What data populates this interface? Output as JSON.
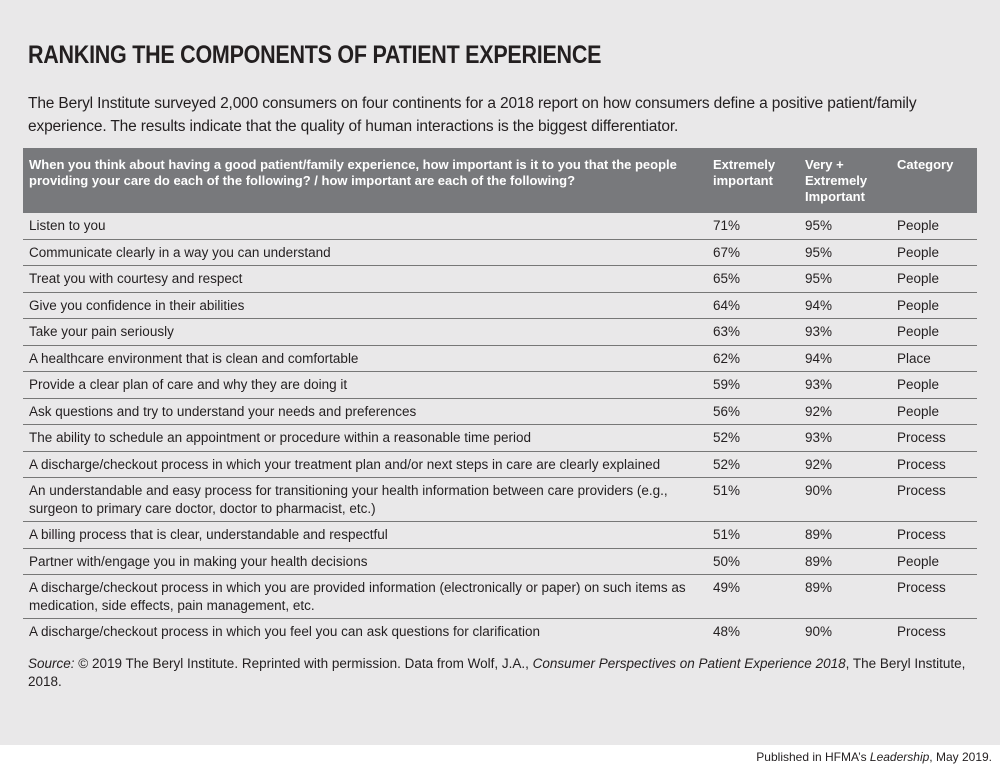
{
  "title": "RANKING THE COMPONENTS OF PATIENT EXPERIENCE",
  "intro": "The Beryl Institute surveyed 2,000 consumers on four continents for a 2018 report on how consumers define a positive patient/family experience. The results indicate that the quality of human interactions is the biggest differentiator.",
  "table": {
    "headers": [
      "When you think about having a good patient/family experience, how important is it to you that the people providing your care do each of the following? / how important are each of the following?",
      "Extremely important",
      "Very + Extremely Important",
      "Category"
    ],
    "rows": [
      [
        "Listen to you",
        "71%",
        "95%",
        "People"
      ],
      [
        "Communicate clearly in a way you can understand",
        "67%",
        "95%",
        "People"
      ],
      [
        "Treat you with courtesy and respect",
        "65%",
        "95%",
        "People"
      ],
      [
        "Give you confidence in their abilities",
        "64%",
        "94%",
        "People"
      ],
      [
        "Take your pain seriously",
        "63%",
        "93%",
        "People"
      ],
      [
        "A healthcare environment that is clean and comfortable",
        "62%",
        "94%",
        "Place"
      ],
      [
        "Provide a clear plan of care and why they are doing it",
        "59%",
        "93%",
        "People"
      ],
      [
        "Ask questions and try to understand your needs and preferences",
        "56%",
        "92%",
        "People"
      ],
      [
        "The ability to schedule an appointment or procedure within a reasonable time period",
        "52%",
        "93%",
        "Process"
      ],
      [
        "A discharge/checkout process in which your treatment plan and/or next steps in care are clearly explained",
        "52%",
        "92%",
        "Process"
      ],
      [
        "An understandable and easy process for transitioning your health information between care providers (e.g., surgeon to primary care doctor, doctor to pharmacist, etc.)",
        "51%",
        "90%",
        "Process"
      ],
      [
        "A billing process that is clear, understandable and respectful",
        "51%",
        "89%",
        "Process"
      ],
      [
        "Partner with/engage you in making your health decisions",
        "50%",
        "89%",
        "People"
      ],
      [
        "A discharge/checkout process in which you are provided information (electronically or paper) on such items as medication, side effects, pain management, etc.",
        "49%",
        "89%",
        "Process"
      ],
      [
        "A discharge/checkout process in which you feel you can ask questions for clarification",
        "48%",
        "90%",
        "Process"
      ]
    ]
  },
  "source": {
    "label": "Source:",
    "text1": " © 2019 The Beryl Institute. Reprinted with permission. Data from Wolf, J.A., ",
    "work": "Consumer Perspectives on Patient Experience 2018",
    "text2": ", The Beryl Institute, 2018."
  },
  "publication": {
    "prefix": "Published in HFMA’s ",
    "journal": "Leadership",
    "suffix": ", May 2019."
  },
  "colors": {
    "panel": "#e9e8e9",
    "header": "#78797c"
  }
}
